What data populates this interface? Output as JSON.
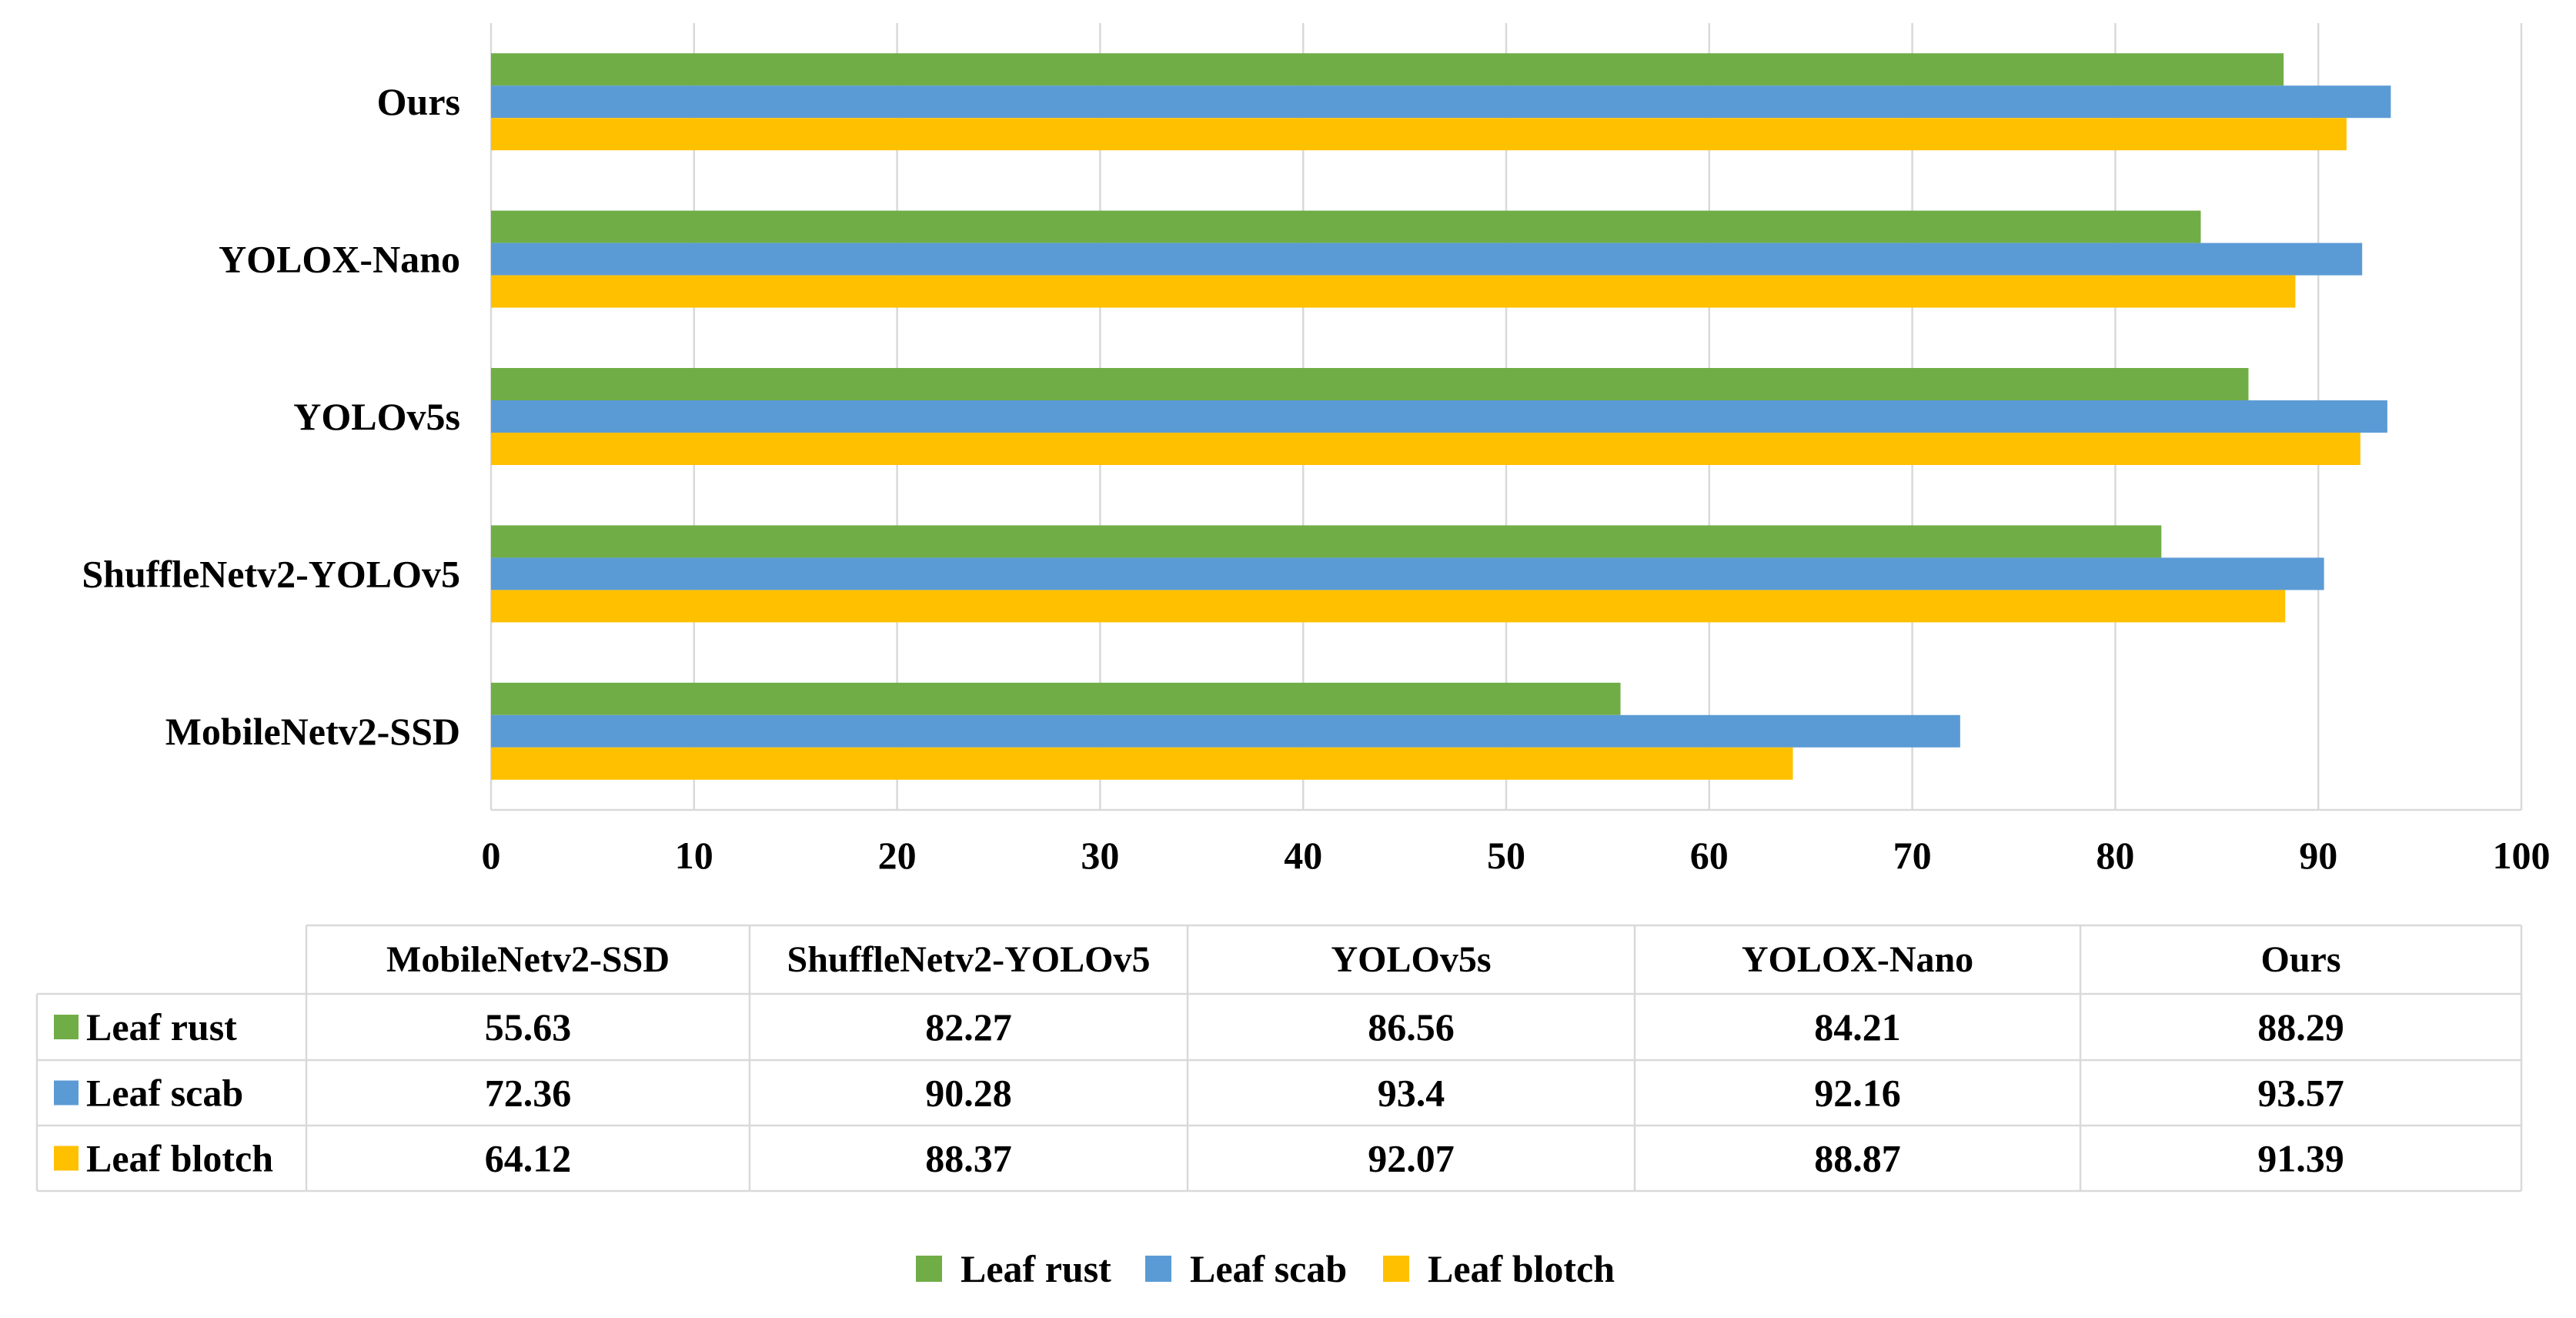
{
  "chart_data": {
    "type": "bar",
    "orientation": "horizontal",
    "title": "",
    "xlabel": "",
    "ylabel": "",
    "xlim": [
      0,
      100
    ],
    "x_ticks": [
      "0",
      "10",
      "20",
      "30",
      "40",
      "50",
      "60",
      "70",
      "80",
      "90",
      "100"
    ],
    "x_tick_values": [
      0,
      10,
      20,
      30,
      40,
      50,
      60,
      70,
      80,
      90,
      100
    ],
    "grid": true,
    "categories": [
      "MobileNetv2-SSD",
      "ShuffleNetv2-YOLOv5",
      "YOLOv5s",
      "YOLOX-Nano",
      "Ours"
    ],
    "series": [
      {
        "name": "Leaf rust",
        "color": "#70AD47",
        "values": [
          55.63,
          82.27,
          86.56,
          84.21,
          88.29
        ]
      },
      {
        "name": "Leaf scab",
        "color": "#5B9BD5",
        "values": [
          72.36,
          90.28,
          93.4,
          92.16,
          93.57
        ]
      },
      {
        "name": "Leaf blotch",
        "color": "#FFC000",
        "values": [
          64.12,
          88.37,
          92.07,
          88.87,
          91.39
        ]
      }
    ],
    "data_table": {
      "columns": [
        "MobileNetv2-SSD",
        "ShuffleNetv2-YOLOv5",
        "YOLOv5s",
        "YOLOX-Nano",
        "Ours"
      ],
      "rows": [
        {
          "label": "Leaf rust",
          "cells": [
            "55.63",
            "82.27",
            "86.56",
            "84.21",
            "88.29"
          ]
        },
        {
          "label": "Leaf scab",
          "cells": [
            "72.36",
            "90.28",
            "93.4",
            "92.16",
            "93.57"
          ]
        },
        {
          "label": "Leaf blotch",
          "cells": [
            "64.12",
            "88.37",
            "92.07",
            "88.87",
            "91.39"
          ]
        }
      ]
    },
    "legend": {
      "position": "bottom-center",
      "entries": [
        "Leaf rust",
        "Leaf scab",
        "Leaf blotch"
      ]
    }
  }
}
